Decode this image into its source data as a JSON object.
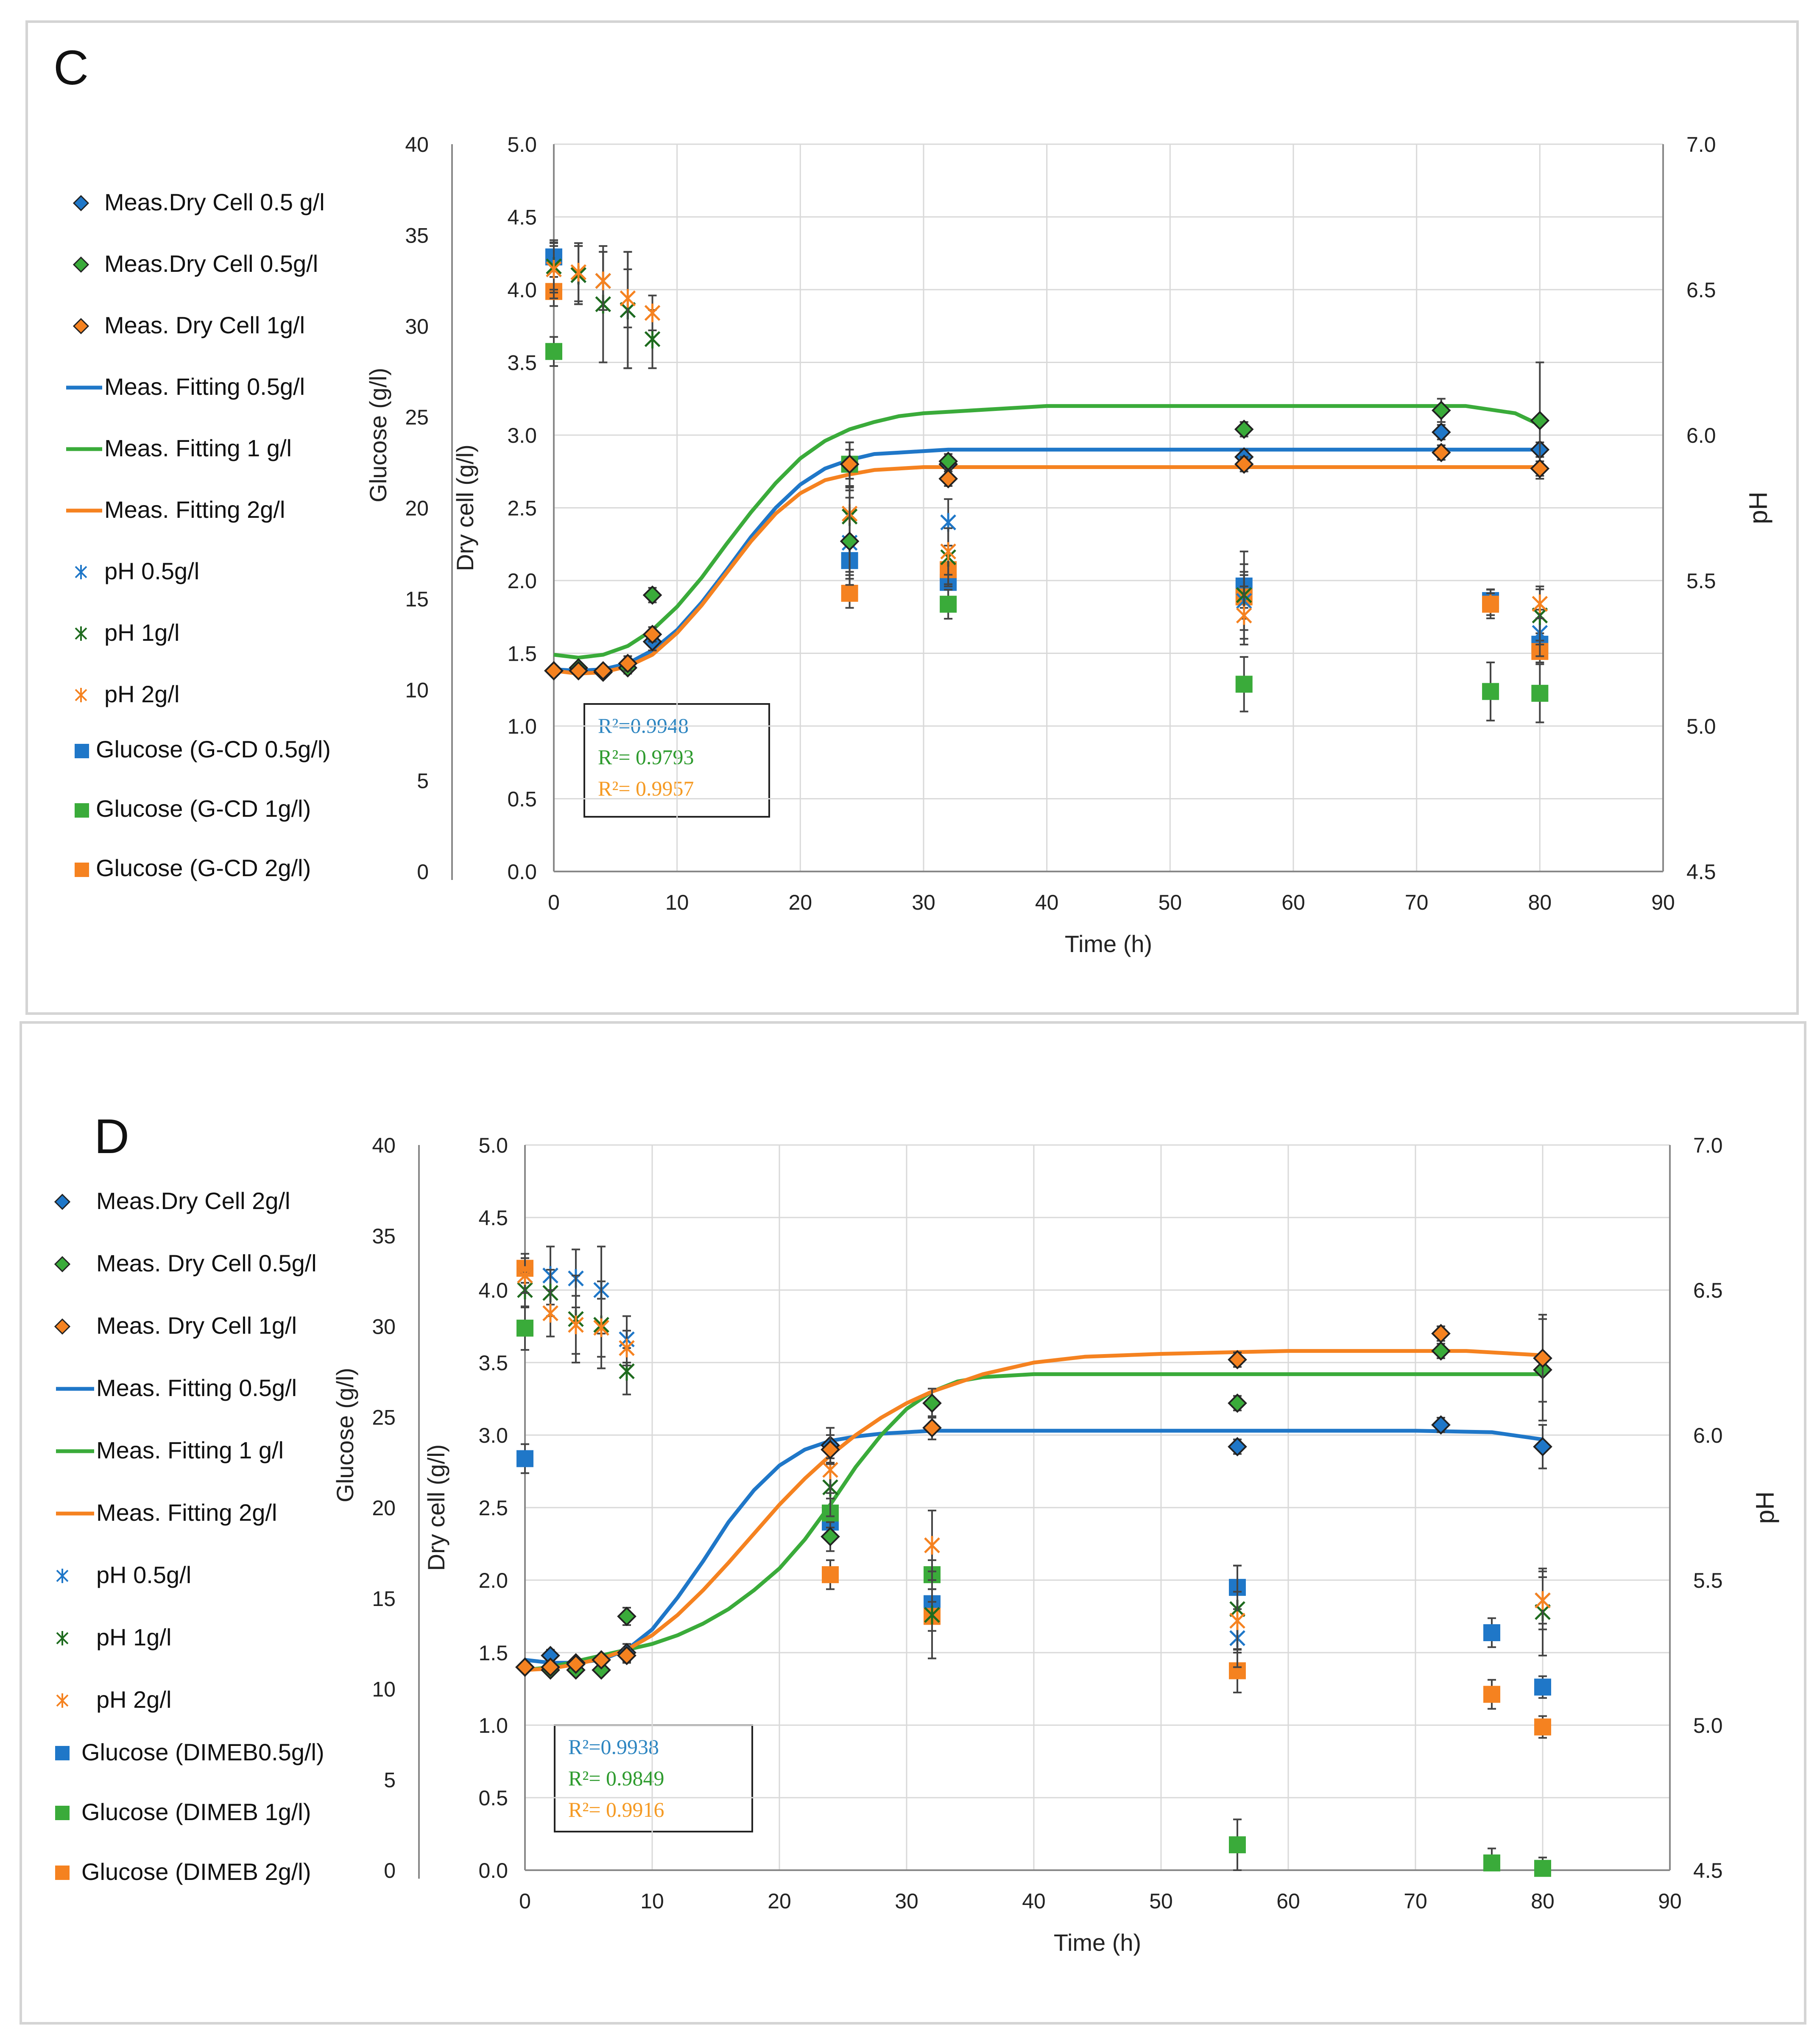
{
  "colors": {
    "blue": "#1f77c8",
    "green": "#3aab3a",
    "orange": "#f58220",
    "dgreen": "#1e6b1e",
    "grid": "#d9d9d9",
    "axis": "#888888",
    "r2blue": "#2e86c1",
    "r2green": "#2e9b2e",
    "r2orange": "#f59a23"
  },
  "chart_data": [
    {
      "panel_label": "C",
      "type": "scatter",
      "xlabel": "Time (h)",
      "ylabel": "Dry cell (g/l)",
      "y2label": "pH",
      "y3label": "Glucose (g/l)",
      "xlim": [
        0,
        90
      ],
      "ylim": [
        0,
        5
      ],
      "y2lim": [
        4.5,
        7.0
      ],
      "y3lim": [
        0,
        40
      ],
      "x_ticks": [
        "0",
        "10",
        "20",
        "30",
        "40",
        "50",
        "60",
        "70",
        "80",
        "90"
      ],
      "y_ticks": [
        "0.0",
        "0.5",
        "1.0",
        "1.5",
        "2.0",
        "2.5",
        "3.0",
        "3.5",
        "4.0",
        "4.5",
        "5.0"
      ],
      "y2_ticks": [
        "4.5",
        "5.0",
        "5.5",
        "6.0",
        "6.5",
        "7.0"
      ],
      "y3_ticks": [
        "0",
        "5",
        "10",
        "15",
        "20",
        "25",
        "30",
        "35",
        "40"
      ],
      "legend": [
        "Meas.Dry Cell 0.5 g/l",
        "Meas.Dry Cell 0.5g/l",
        "Meas. Dry Cell 1g/l",
        "Meas. Fitting 0.5g/l",
        "Meas. Fitting 1 g/l",
        "Meas. Fitting 2g/l",
        "pH 0.5g/l",
        "pH 1g/l",
        "pH 2g/l",
        "Glucose (G-CD 0.5g/l)",
        "Glucose (G-CD 1g/l)",
        "Glucose (G-CD 2g/l)"
      ],
      "r2": [
        "R²=0.9948",
        "R²= 0.9793",
        "R²= 0.9957"
      ],
      "drycell": [
        {
          "color": "blue",
          "x": [
            0,
            2,
            4,
            6,
            8,
            24,
            32,
            56,
            72,
            80
          ],
          "y": [
            1.38,
            1.38,
            1.37,
            1.43,
            1.58,
            2.8,
            2.8,
            2.85,
            3.02,
            2.9
          ],
          "err": [
            0.03,
            0.03,
            0.03,
            0.05,
            0.06,
            0.15,
            0.05,
            0.05,
            0.05,
            0.05
          ]
        },
        {
          "color": "green",
          "x": [
            0,
            2,
            4,
            6,
            8,
            24,
            32,
            56,
            72,
            80
          ],
          "y": [
            1.38,
            1.4,
            1.37,
            1.4,
            1.9,
            2.27,
            2.82,
            3.04,
            3.17,
            3.1
          ],
          "err": [
            0.03,
            0.03,
            0.03,
            0.04,
            0.05,
            0.3,
            0.05,
            0.05,
            0.08,
            0.4
          ]
        },
        {
          "color": "orange",
          "x": [
            0,
            2,
            4,
            6,
            8,
            24,
            32,
            56,
            72,
            80
          ],
          "y": [
            1.38,
            1.38,
            1.38,
            1.43,
            1.63,
            2.8,
            2.7,
            2.8,
            2.88,
            2.77
          ],
          "err": [
            0.03,
            0.03,
            0.03,
            0.05,
            0.05,
            0.15,
            0.05,
            0.05,
            0.05,
            0.05
          ]
        }
      ],
      "fitting": [
        {
          "color": "blue",
          "x": [
            0,
            2,
            4,
            6,
            8,
            10,
            12,
            14,
            16,
            18,
            20,
            22,
            24,
            26,
            28,
            30,
            32,
            36,
            40,
            50,
            60,
            70,
            80
          ],
          "y": [
            1.39,
            1.38,
            1.39,
            1.43,
            1.52,
            1.66,
            1.85,
            2.07,
            2.3,
            2.5,
            2.66,
            2.77,
            2.83,
            2.87,
            2.88,
            2.89,
            2.9,
            2.9,
            2.9,
            2.9,
            2.9,
            2.9,
            2.9
          ]
        },
        {
          "color": "green",
          "x": [
            0,
            2,
            4,
            6,
            8,
            10,
            12,
            14,
            16,
            18,
            20,
            22,
            24,
            26,
            28,
            30,
            32,
            36,
            40,
            50,
            60,
            70,
            74,
            78,
            80
          ],
          "y": [
            1.49,
            1.47,
            1.49,
            1.55,
            1.66,
            1.82,
            2.02,
            2.25,
            2.47,
            2.67,
            2.84,
            2.96,
            3.04,
            3.09,
            3.13,
            3.15,
            3.16,
            3.18,
            3.2,
            3.2,
            3.2,
            3.2,
            3.2,
            3.15,
            3.07
          ]
        },
        {
          "color": "orange",
          "x": [
            0,
            2,
            4,
            6,
            8,
            10,
            12,
            14,
            16,
            18,
            20,
            22,
            24,
            26,
            28,
            30,
            32,
            36,
            40,
            50,
            60,
            70,
            80
          ],
          "y": [
            1.38,
            1.36,
            1.37,
            1.41,
            1.49,
            1.64,
            1.83,
            2.05,
            2.27,
            2.46,
            2.6,
            2.69,
            2.73,
            2.76,
            2.77,
            2.78,
            2.78,
            2.78,
            2.78,
            2.78,
            2.78,
            2.78,
            2.78
          ]
        }
      ],
      "ph": [
        {
          "color": "blue",
          "x": [
            0,
            2,
            4,
            6,
            24,
            32,
            56,
            80
          ],
          "y": [
            6.57,
            6.55,
            6.53,
            6.43,
            5.63,
            5.7,
            5.43,
            5.32
          ],
          "err": [
            0.08,
            0.1,
            0.1,
            0.2,
            0.1,
            0.08,
            0.1,
            0.08
          ]
        },
        {
          "color": "dgreen",
          "x": [
            0,
            2,
            4,
            6,
            8,
            24,
            32,
            56,
            80
          ],
          "y": [
            6.58,
            6.55,
            6.45,
            6.43,
            6.33,
            5.72,
            5.58,
            5.45,
            5.38
          ],
          "err": [
            0.08,
            0.1,
            0.2,
            0.2,
            0.1,
            0.1,
            0.1,
            0.15,
            0.1
          ]
        },
        {
          "color": "orange",
          "x": [
            0,
            2,
            4,
            6,
            8,
            24,
            32,
            56,
            76,
            80
          ],
          "y": [
            6.57,
            6.56,
            6.53,
            6.47,
            6.42,
            5.73,
            5.6,
            5.38,
            5.42,
            5.42
          ],
          "err": [
            0.1,
            0.1,
            0.1,
            0.1,
            0.06,
            0.08,
            0.08,
            0.1,
            0.05,
            0.05
          ]
        }
      ],
      "glucose": [
        {
          "color": "blue",
          "x": [
            0,
            24,
            32,
            56,
            76,
            80
          ],
          "y": [
            33.8,
            17.1,
            15.9,
            15.7,
            14.9,
            12.5
          ],
          "err": [
            0.8,
            0.8,
            0.8,
            1.2,
            0.6,
            0.6
          ]
        },
        {
          "color": "green",
          "x": [
            0,
            24,
            32,
            56,
            76,
            80
          ],
          "y": [
            28.6,
            22.4,
            14.7,
            10.3,
            9.9,
            9.8
          ],
          "err": [
            0.8,
            0.8,
            0.8,
            1.5,
            1.6,
            1.6
          ]
        },
        {
          "color": "orange",
          "x": [
            0,
            24,
            32,
            56,
            76,
            80
          ],
          "y": [
            31.9,
            15.3,
            16.6,
            15.1,
            14.7,
            12.1
          ],
          "err": [
            0.8,
            0.8,
            0.8,
            1.2,
            0.6,
            0.6
          ]
        }
      ]
    },
    {
      "panel_label": "D",
      "type": "scatter",
      "xlabel": "Time (h)",
      "ylabel": "Dry cell (g/l)",
      "y2label": "pH",
      "y3label": "Glucose (g/l)",
      "xlim": [
        0,
        90
      ],
      "ylim": [
        0,
        5
      ],
      "y2lim": [
        4.5,
        7.0
      ],
      "y3lim": [
        0,
        40
      ],
      "x_ticks": [
        "0",
        "10",
        "20",
        "30",
        "40",
        "50",
        "60",
        "70",
        "80",
        "90"
      ],
      "y_ticks": [
        "0.0",
        "0.5",
        "1.0",
        "1.5",
        "2.0",
        "2.5",
        "3.0",
        "3.5",
        "4.0",
        "4.5",
        "5.0"
      ],
      "y2_ticks": [
        "4.5",
        "5.0",
        "5.5",
        "6.0",
        "6.5",
        "7.0"
      ],
      "y3_ticks": [
        "0",
        "5",
        "10",
        "15",
        "20",
        "25",
        "30",
        "35",
        "40"
      ],
      "legend": [
        "Meas.Dry Cell 2g/l",
        "Meas. Dry Cell 0.5g/l",
        "Meas. Dry Cell 1g/l",
        "Meas. Fitting 0.5g/l",
        "Meas. Fitting 1 g/l",
        "Meas. Fitting 2g/l",
        "pH 0.5g/l",
        "pH 1g/l",
        "pH 2g/l",
        "Glucose (DIMEB0.5g/l)",
        "Glucose (DIMEB 1g/l)",
        "Glucose (DIMEB 2g/l)"
      ],
      "r2": [
        "R²=0.9938",
        "R²= 0.9849",
        "R²= 0.9916"
      ],
      "drycell": [
        {
          "color": "blue",
          "x": [
            0,
            2,
            4,
            6,
            8,
            24,
            56,
            72,
            80
          ],
          "y": [
            1.4,
            1.48,
            1.43,
            1.45,
            1.5,
            2.93,
            2.92,
            3.07,
            2.92
          ],
          "err": [
            0.03,
            0.04,
            0.03,
            0.03,
            0.06,
            0.12,
            0.05,
            0.05,
            0.15
          ]
        },
        {
          "color": "green",
          "x": [
            0,
            2,
            4,
            6,
            8,
            24,
            32,
            56,
            72,
            80
          ],
          "y": [
            1.4,
            1.38,
            1.38,
            1.38,
            1.75,
            2.3,
            3.22,
            3.22,
            3.58,
            3.45
          ],
          "err": [
            0.03,
            0.03,
            0.03,
            0.03,
            0.06,
            0.1,
            0.1,
            0.05,
            0.05,
            0.35
          ]
        },
        {
          "color": "orange",
          "x": [
            0,
            2,
            4,
            6,
            8,
            24,
            32,
            56,
            72,
            80
          ],
          "y": [
            1.4,
            1.4,
            1.42,
            1.45,
            1.48,
            2.9,
            3.05,
            3.52,
            3.7,
            3.53
          ],
          "err": [
            0.03,
            0.03,
            0.03,
            0.03,
            0.05,
            0.1,
            0.08,
            0.05,
            0.05,
            0.3
          ]
        }
      ],
      "fitting": [
        {
          "color": "blue",
          "x": [
            0,
            2,
            4,
            6,
            8,
            10,
            12,
            14,
            16,
            18,
            20,
            22,
            24,
            26,
            28,
            30,
            32,
            36,
            40,
            50,
            60,
            70,
            76,
            80
          ],
          "y": [
            1.45,
            1.43,
            1.43,
            1.45,
            1.52,
            1.66,
            1.88,
            2.13,
            2.4,
            2.62,
            2.79,
            2.9,
            2.96,
            2.99,
            3.01,
            3.02,
            3.03,
            3.03,
            3.03,
            3.03,
            3.03,
            3.03,
            3.02,
            2.97
          ]
        },
        {
          "color": "green",
          "x": [
            0,
            2,
            4,
            6,
            8,
            10,
            12,
            14,
            16,
            18,
            20,
            22,
            24,
            26,
            28,
            30,
            32,
            34,
            36,
            40,
            50,
            60,
            70,
            80
          ],
          "y": [
            1.38,
            1.4,
            1.44,
            1.48,
            1.52,
            1.56,
            1.62,
            1.7,
            1.8,
            1.93,
            2.08,
            2.28,
            2.52,
            2.78,
            3.0,
            3.18,
            3.3,
            3.37,
            3.4,
            3.42,
            3.42,
            3.42,
            3.42,
            3.42
          ]
        },
        {
          "color": "orange",
          "x": [
            0,
            2,
            4,
            6,
            8,
            10,
            12,
            14,
            16,
            18,
            20,
            22,
            24,
            26,
            28,
            30,
            32,
            36,
            40,
            44,
            50,
            60,
            70,
            74,
            80
          ],
          "y": [
            1.38,
            1.39,
            1.42,
            1.46,
            1.52,
            1.62,
            1.76,
            1.93,
            2.12,
            2.32,
            2.52,
            2.7,
            2.86,
            3.0,
            3.12,
            3.22,
            3.3,
            3.42,
            3.5,
            3.54,
            3.56,
            3.58,
            3.58,
            3.58,
            3.55
          ]
        }
      ],
      "ph": [
        {
          "color": "blue",
          "x": [
            0,
            2,
            4,
            6,
            8,
            56,
            80
          ],
          "y": [
            6.55,
            6.55,
            6.54,
            6.5,
            6.33,
            5.3,
            5.43
          ],
          "err": [
            0.06,
            0.1,
            0.1,
            0.15,
            0.08,
            0.1,
            0.08
          ]
        },
        {
          "color": "dgreen",
          "x": [
            0,
            2,
            4,
            6,
            8,
            24,
            32,
            56,
            80
          ],
          "y": [
            6.5,
            6.49,
            6.4,
            6.38,
            6.22,
            5.82,
            5.38,
            5.4,
            5.39
          ],
          "err": [
            0.06,
            0.08,
            0.15,
            0.15,
            0.08,
            0.1,
            0.15,
            0.15,
            0.15
          ]
        },
        {
          "color": "orange",
          "x": [
            0,
            2,
            4,
            6,
            8,
            24,
            32,
            56,
            80
          ],
          "y": [
            6.55,
            6.42,
            6.38,
            6.37,
            6.3,
            5.88,
            5.62,
            5.36,
            5.43
          ],
          "err": [
            0.06,
            0.08,
            0.1,
            0.1,
            0.06,
            0.08,
            0.12,
            0.1,
            0.1
          ]
        }
      ],
      "glucose": [
        {
          "color": "blue",
          "x": [
            0,
            24,
            32,
            56,
            76,
            80
          ],
          "y": [
            22.7,
            19.2,
            14.7,
            15.6,
            13.1,
            10.1
          ],
          "err": [
            0.8,
            0.8,
            0.8,
            1.2,
            0.8,
            0.6
          ]
        },
        {
          "color": "green",
          "x": [
            0,
            24,
            32,
            56,
            76,
            80
          ],
          "y": [
            29.9,
            19.7,
            16.3,
            1.4,
            0.4,
            0.1
          ],
          "err": [
            1.2,
            0.8,
            0.8,
            1.4,
            0.8,
            0.6
          ]
        },
        {
          "color": "orange",
          "x": [
            0,
            24,
            32,
            56,
            76,
            80
          ],
          "y": [
            33.2,
            16.3,
            14.0,
            11.0,
            9.7,
            7.9
          ],
          "err": [
            0.8,
            0.8,
            0.8,
            1.2,
            0.8,
            0.6
          ]
        }
      ]
    }
  ]
}
